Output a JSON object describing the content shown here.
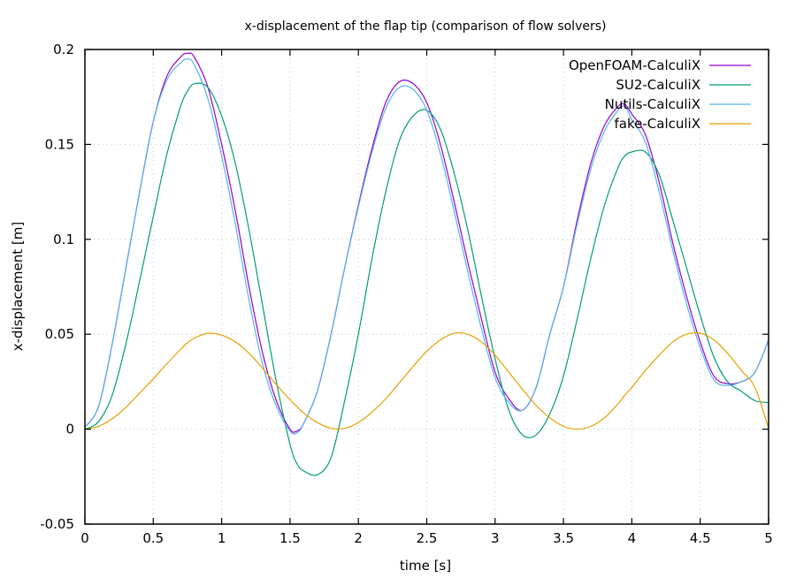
{
  "chart_data": {
    "type": "line",
    "title": "x-displacement of the flap tip (comparison of flow solvers)",
    "xlabel": "time [s]",
    "ylabel": "x-displacement [m]",
    "xlim": [
      0,
      5
    ],
    "ylim": [
      -0.05,
      0.2
    ],
    "xticks": [
      "0",
      "0.5",
      "1",
      "1.5",
      "2",
      "2.5",
      "3",
      "3.5",
      "4",
      "4.5",
      "5"
    ],
    "yticks": [
      "-0.05",
      "0",
      "0.05",
      "0.1",
      "0.15",
      "0.2"
    ],
    "grid": true,
    "legend_position": "top-right",
    "x": [
      0.0,
      0.1,
      0.2,
      0.3,
      0.4,
      0.5,
      0.6,
      0.7,
      0.75,
      0.8,
      0.9,
      1.0,
      1.1,
      1.2,
      1.3,
      1.4,
      1.5,
      1.55,
      1.6,
      1.7,
      1.8,
      1.9,
      2.0,
      2.1,
      2.2,
      2.3,
      2.4,
      2.5,
      2.6,
      2.7,
      2.8,
      2.9,
      3.0,
      3.1,
      3.2,
      3.3,
      3.4,
      3.5,
      3.6,
      3.7,
      3.8,
      3.9,
      3.95,
      4.0,
      4.1,
      4.2,
      4.3,
      4.4,
      4.5,
      4.6,
      4.7,
      4.8,
      4.9,
      5.0
    ],
    "series": [
      {
        "name": "OpenFOAM-CalculiX",
        "color": "#9400d3",
        "values": [
          0.001,
          0.012,
          0.045,
          0.085,
          0.125,
          0.162,
          0.186,
          0.196,
          0.198,
          0.196,
          0.18,
          0.15,
          0.115,
          0.075,
          0.04,
          0.015,
          0.0,
          -0.001,
          0.003,
          0.02,
          0.05,
          0.085,
          0.118,
          0.148,
          0.172,
          0.183,
          0.182,
          0.172,
          0.15,
          0.12,
          0.088,
          0.058,
          0.03,
          0.016,
          0.01,
          0.022,
          0.05,
          0.075,
          0.11,
          0.14,
          0.16,
          0.17,
          0.171,
          0.166,
          0.155,
          0.13,
          0.098,
          0.07,
          0.046,
          0.028,
          0.024,
          0.025,
          0.03,
          0.047
        ]
      },
      {
        "name": "SU2-CalculiX",
        "color": "#009e73",
        "values": [
          0.0,
          0.004,
          0.018,
          0.045,
          0.078,
          0.112,
          0.145,
          0.17,
          0.178,
          0.182,
          0.18,
          0.165,
          0.14,
          0.105,
          0.065,
          0.025,
          -0.008,
          -0.018,
          -0.022,
          -0.024,
          -0.015,
          0.015,
          0.05,
          0.09,
          0.125,
          0.152,
          0.165,
          0.168,
          0.158,
          0.135,
          0.105,
          0.07,
          0.037,
          0.01,
          -0.003,
          -0.003,
          0.008,
          0.028,
          0.058,
          0.09,
          0.118,
          0.138,
          0.144,
          0.146,
          0.146,
          0.134,
          0.11,
          0.085,
          0.06,
          0.038,
          0.025,
          0.02,
          0.015,
          0.014
        ]
      },
      {
        "name": "Nutils-CalculiX",
        "color": "#56b4e9",
        "values": [
          0.001,
          0.012,
          0.045,
          0.085,
          0.125,
          0.162,
          0.184,
          0.193,
          0.195,
          0.192,
          0.174,
          0.144,
          0.108,
          0.068,
          0.034,
          0.012,
          -0.001,
          -0.002,
          0.003,
          0.02,
          0.05,
          0.085,
          0.117,
          0.146,
          0.169,
          0.18,
          0.179,
          0.168,
          0.145,
          0.115,
          0.083,
          0.053,
          0.027,
          0.014,
          0.01,
          0.022,
          0.05,
          0.075,
          0.108,
          0.137,
          0.157,
          0.168,
          0.17,
          0.163,
          0.151,
          0.125,
          0.094,
          0.066,
          0.043,
          0.026,
          0.023,
          0.025,
          0.03,
          0.047
        ]
      },
      {
        "name": "fake-CalculiX",
        "color": "#e69f00",
        "values": [
          0.0,
          0.0015,
          0.0055,
          0.0115,
          0.019,
          0.0265,
          0.0345,
          0.042,
          0.0455,
          0.048,
          0.0505,
          0.0495,
          0.046,
          0.04,
          0.032,
          0.0235,
          0.0155,
          0.012,
          0.0085,
          0.0035,
          0.0005,
          0.0005,
          0.0035,
          0.009,
          0.016,
          0.0245,
          0.033,
          0.041,
          0.047,
          0.0505,
          0.05,
          0.046,
          0.039,
          0.03,
          0.021,
          0.0125,
          0.006,
          0.0015,
          0.0,
          0.0015,
          0.006,
          0.0135,
          0.018,
          0.022,
          0.031,
          0.039,
          0.046,
          0.05,
          0.0505,
          0.047,
          0.04,
          0.031,
          0.022,
          0.0005
        ]
      }
    ]
  }
}
